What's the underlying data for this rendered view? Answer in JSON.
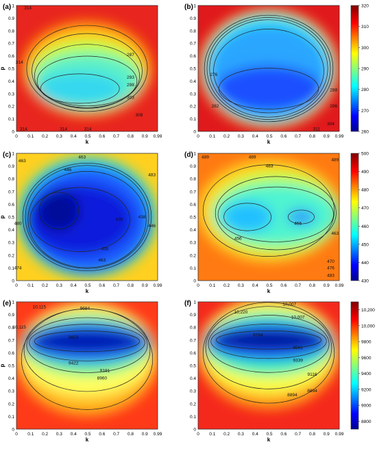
{
  "chart_data": [
    {
      "panel": "(a)",
      "type": "heatmap",
      "xlabel": "k",
      "ylabel": "p",
      "xticks": [
        "0",
        "0.1",
        "0.2",
        "0.3",
        "0.4",
        "0.5",
        "0.6",
        "0.7",
        "0.8",
        "0.9",
        "0.99"
      ],
      "yticks": [
        "0",
        "0.1",
        "0.2",
        "0.3",
        "0.4",
        "0.5",
        "0.6",
        "0.7",
        "0.8",
        "0.9",
        "1"
      ],
      "xlim": [
        0,
        0.99
      ],
      "ylim": [
        0,
        1
      ],
      "colorbar": "shared with (b)",
      "contour_labels": [
        {
          "text": "314",
          "x": 0.08,
          "y": 0.98
        },
        {
          "text": "287",
          "x": 0.8,
          "y": 0.61
        },
        {
          "text": "293",
          "x": 0.8,
          "y": 0.43
        },
        {
          "text": "298",
          "x": 0.8,
          "y": 0.37
        },
        {
          "text": "303",
          "x": 0.8,
          "y": 0.27
        },
        {
          "text": "308",
          "x": 0.86,
          "y": 0.13
        },
        {
          "text": "314",
          "x": 0.02,
          "y": 0.55
        },
        {
          "text": "314",
          "x": 0.05,
          "y": 0.02
        },
        {
          "text": "314",
          "x": 0.33,
          "y": 0.02
        },
        {
          "text": "314",
          "x": 0.5,
          "y": 0.02
        }
      ]
    },
    {
      "panel": "(b)",
      "type": "heatmap",
      "xlabel": "k",
      "ylabel": "",
      "xticks": [
        "0",
        "0.1",
        "0.2",
        "0.3",
        "0.4",
        "0.5",
        "0.6",
        "0.7",
        "0.8",
        "0.9",
        "0.99"
      ],
      "yticks": [
        "0",
        "0.1",
        "0.2",
        "0.3",
        "0.4",
        "0.5",
        "0.6",
        "0.7",
        "0.8",
        "0.9",
        "1"
      ],
      "xlim": [
        0,
        0.99
      ],
      "ylim": [
        0,
        1
      ],
      "colorbar": {
        "min": 260,
        "max": 320,
        "ticks": [
          "260",
          "270",
          "280",
          "290",
          "300",
          "310",
          "320"
        ]
      },
      "contour_labels": [
        {
          "text": "276",
          "x": 0.11,
          "y": 0.45
        },
        {
          "text": "282",
          "x": 0.12,
          "y": 0.2
        },
        {
          "text": "288",
          "x": 0.95,
          "y": 0.33
        },
        {
          "text": "296",
          "x": 0.95,
          "y": 0.2
        },
        {
          "text": "304",
          "x": 0.93,
          "y": 0.06
        },
        {
          "text": "311",
          "x": 0.83,
          "y": 0.02
        }
      ]
    },
    {
      "panel": "(c)",
      "type": "heatmap",
      "xlabel": "k",
      "ylabel": "p",
      "xticks": [
        "0",
        "0.1",
        "0.2",
        "0.3",
        "0.4",
        "0.5",
        "0.6",
        "0.7",
        "0.8",
        "0.9",
        "0.99"
      ],
      "yticks": [
        "0",
        "0.1",
        "0.2",
        "0.3",
        "0.4",
        "0.5",
        "0.6",
        "0.7",
        "0.8",
        "0.9",
        "1"
      ],
      "xlim": [
        0,
        0.99
      ],
      "ylim": [
        0,
        1
      ],
      "colorbar": "shared with (d)",
      "contour_labels": [
        {
          "text": "463",
          "x": 0.46,
          "y": 0.97
        },
        {
          "text": "446",
          "x": 0.36,
          "y": 0.87
        },
        {
          "text": "463",
          "x": 0.04,
          "y": 0.94
        },
        {
          "text": "483",
          "x": 0.95,
          "y": 0.83
        },
        {
          "text": "438",
          "x": 0.72,
          "y": 0.48
        },
        {
          "text": "438",
          "x": 0.88,
          "y": 0.5
        },
        {
          "text": "446",
          "x": 0.95,
          "y": 0.43
        },
        {
          "text": "455",
          "x": 0.62,
          "y": 0.25
        },
        {
          "text": "463",
          "x": 0.6,
          "y": 0.16
        },
        {
          "text": "480",
          "x": 0.01,
          "y": 0.45
        },
        {
          "text": "474",
          "x": 0.01,
          "y": 0.1
        }
      ]
    },
    {
      "panel": "(d)",
      "type": "heatmap",
      "xlabel": "k",
      "ylabel": "",
      "xticks": [
        "0",
        "0.1",
        "0.2",
        "0.3",
        "0.4",
        "0.5",
        "0.6",
        "0.7",
        "0.8",
        "0.9",
        "0.99"
      ],
      "yticks": [
        "0",
        "0.1",
        "0.2",
        "0.3",
        "0.4",
        "0.5",
        "0.6",
        "0.7",
        "0.8",
        "0.9",
        "1"
      ],
      "xlim": [
        0,
        0.99
      ],
      "ylim": [
        0,
        1
      ],
      "colorbar": {
        "min": 430,
        "max": 500,
        "ticks": [
          "430",
          "440",
          "450",
          "460",
          "470",
          "480",
          "490",
          "500"
        ]
      },
      "contour_labels": [
        {
          "text": "489",
          "x": 0.05,
          "y": 0.97
        },
        {
          "text": "489",
          "x": 0.38,
          "y": 0.97
        },
        {
          "text": "483",
          "x": 0.5,
          "y": 0.9
        },
        {
          "text": "489",
          "x": 0.96,
          "y": 0.95
        },
        {
          "text": "456",
          "x": 0.28,
          "y": 0.33
        },
        {
          "text": "456",
          "x": 0.7,
          "y": 0.45
        },
        {
          "text": "463",
          "x": 0.96,
          "y": 0.37
        },
        {
          "text": "470",
          "x": 0.93,
          "y": 0.15
        },
        {
          "text": "476",
          "x": 0.93,
          "y": 0.1
        },
        {
          "text": "483",
          "x": 0.93,
          "y": 0.04
        }
      ]
    },
    {
      "panel": "(e)",
      "type": "heatmap",
      "xlabel": "k",
      "ylabel": "p",
      "xticks": [
        "0",
        "0.1",
        "0.2",
        "0.3",
        "0.4",
        "0.5",
        "0.6",
        "0.7",
        "0.8",
        "0.9",
        "0.99"
      ],
      "yticks": [
        "0",
        "0.1",
        "0.2",
        "0.3",
        "0.4",
        "0.5",
        "0.6",
        "0.7",
        "0.8",
        "0.9",
        "1"
      ],
      "xlim": [
        0,
        0.99
      ],
      "ylim": [
        0,
        1
      ],
      "colorbar": "shared with (f)",
      "contour_labels": [
        {
          "text": "10,115",
          "x": 0.16,
          "y": 0.96
        },
        {
          "text": "10,115",
          "x": 0.02,
          "y": 0.8
        },
        {
          "text": "9684",
          "x": 0.48,
          "y": 0.95
        },
        {
          "text": "9653",
          "x": 0.4,
          "y": 0.72
        },
        {
          "text": "9422",
          "x": 0.4,
          "y": 0.52
        },
        {
          "text": "9191",
          "x": 0.62,
          "y": 0.46
        },
        {
          "text": "8960",
          "x": 0.6,
          "y": 0.4
        }
      ]
    },
    {
      "panel": "(f)",
      "type": "heatmap",
      "xlabel": "k",
      "ylabel": "",
      "xticks": [
        "0",
        "0.1",
        "0.2",
        "0.3",
        "0.4",
        "0.5",
        "0.6",
        "0.7",
        "0.8",
        "0.9",
        "0.99"
      ],
      "yticks": [
        "0",
        "0.1",
        "0.2",
        "0.3",
        "0.4",
        "0.5",
        "0.6",
        "0.7",
        "0.8",
        "0.9",
        "1"
      ],
      "xlim": [
        0,
        0.99
      ],
      "ylim": [
        0,
        1
      ],
      "colorbar": {
        "min": 8700,
        "max": 10300,
        "ticks": [
          "8800",
          "9000",
          "9200",
          "9400",
          "9600",
          "9800",
          "10,000",
          "10,200"
        ]
      },
      "contour_labels": [
        {
          "text": "10,007",
          "x": 0.64,
          "y": 0.98
        },
        {
          "text": "10,220",
          "x": 0.3,
          "y": 0.92
        },
        {
          "text": "10,007",
          "x": 0.7,
          "y": 0.88
        },
        {
          "text": "9784",
          "x": 0.42,
          "y": 0.74
        },
        {
          "text": "9561",
          "x": 0.7,
          "y": 0.64
        },
        {
          "text": "9339",
          "x": 0.7,
          "y": 0.54
        },
        {
          "text": "9116",
          "x": 0.8,
          "y": 0.43
        },
        {
          "text": "8894",
          "x": 0.66,
          "y": 0.27
        },
        {
          "text": "8894",
          "x": 0.8,
          "y": 0.3
        }
      ]
    }
  ]
}
